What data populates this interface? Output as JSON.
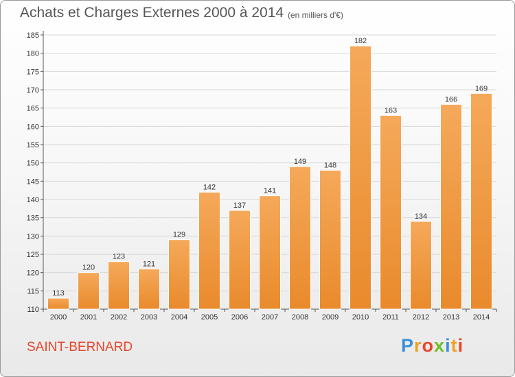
{
  "chart_data": {
    "type": "bar",
    "title": "Achats et Charges Externes 2000 à 2014",
    "subtitle": "(en milliers d'€)",
    "categories": [
      "2000",
      "2001",
      "2002",
      "2003",
      "2004",
      "2005",
      "2006",
      "2007",
      "2008",
      "2009",
      "2010",
      "2011",
      "2012",
      "2013",
      "2014"
    ],
    "values": [
      113,
      120,
      123,
      121,
      129,
      142,
      137,
      141,
      149,
      148,
      182,
      163,
      134,
      166,
      169
    ],
    "ylim": [
      110,
      185
    ],
    "yticks": [
      110,
      115,
      120,
      125,
      130,
      135,
      140,
      145,
      150,
      155,
      160,
      165,
      170,
      175,
      180,
      185
    ],
    "grid": true,
    "legend": "none",
    "bar_color": "#e98a2c",
    "bar_color_light": "#f5a95a"
  },
  "footer": {
    "commune": "SAINT-BERNARD",
    "logo": "Proxiti"
  }
}
